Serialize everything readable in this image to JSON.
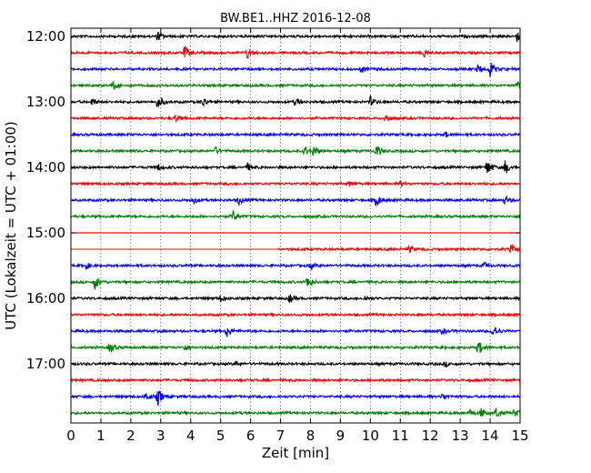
{
  "chart_data": {
    "type": "line",
    "title": "BW.BE1..HHZ 2016-12-08",
    "xlabel": "Zeit  [min]",
    "ylabel": "UTC (Lokalzeit = UTC + 01:00)",
    "xlim": [
      0,
      15
    ],
    "x_ticks": [
      "0",
      "1",
      "2",
      "3",
      "4",
      "5",
      "6",
      "7",
      "8",
      "9",
      "10",
      "11",
      "12",
      "13",
      "14",
      "15"
    ],
    "y_ticks": [
      "12:00",
      "13:00",
      "14:00",
      "15:00",
      "16:00",
      "17:00"
    ],
    "grid": "dotted vertical lines at each minute",
    "colors": [
      "#000000",
      "#ff0000",
      "#0000ff",
      "#008000"
    ],
    "rows_per_hour": 4,
    "minutes_per_row": 15,
    "traces": [
      {
        "row": 0,
        "start_time": "12:00",
        "color": "#000000",
        "events": [
          [
            2.9,
            0.55
          ],
          [
            14.9,
            0.6
          ]
        ]
      },
      {
        "row": 1,
        "start_time": "12:15",
        "color": "#ff0000",
        "events": [
          [
            3.8,
            0.85
          ],
          [
            5.9,
            0.75
          ],
          [
            11.8,
            0.5
          ]
        ]
      },
      {
        "row": 2,
        "start_time": "12:30",
        "color": "#0000ff",
        "events": [
          [
            9.7,
            0.4
          ],
          [
            13.6,
            0.55
          ],
          [
            14.0,
            1.0
          ]
        ]
      },
      {
        "row": 3,
        "start_time": "12:45",
        "color": "#008000",
        "events": [
          [
            1.4,
            0.55
          ],
          [
            14.9,
            0.5
          ]
        ]
      },
      {
        "row": 4,
        "start_time": "13:00",
        "color": "#000000",
        "events": [
          [
            0.7,
            0.45
          ],
          [
            2.9,
            0.9
          ],
          [
            4.4,
            0.6
          ],
          [
            7.5,
            0.45
          ],
          [
            10.0,
            0.6
          ]
        ]
      },
      {
        "row": 5,
        "start_time": "13:15",
        "color": "#ff0000",
        "events": [
          [
            3.5,
            0.4
          ],
          [
            10.5,
            0.6
          ]
        ]
      },
      {
        "row": 6,
        "start_time": "13:30",
        "color": "#0000ff",
        "events": [
          [
            12.5,
            0.3
          ]
        ]
      },
      {
        "row": 7,
        "start_time": "13:45",
        "color": "#008000",
        "events": [
          [
            4.8,
            0.55
          ],
          [
            7.8,
            0.6
          ],
          [
            8.1,
            0.7
          ],
          [
            10.2,
            0.8
          ]
        ]
      },
      {
        "row": 8,
        "start_time": "14:00",
        "color": "#000000",
        "events": [
          [
            2.9,
            0.4
          ],
          [
            5.9,
            0.45
          ],
          [
            13.9,
            1.0
          ],
          [
            14.5,
            0.85
          ]
        ]
      },
      {
        "row": 9,
        "start_time": "14:15",
        "color": "#ff0000",
        "events": [
          [
            9.3,
            0.3
          ],
          [
            11.0,
            0.3
          ]
        ]
      },
      {
        "row": 10,
        "start_time": "14:30",
        "color": "#0000ff",
        "events": [
          [
            4.1,
            0.4
          ],
          [
            5.6,
            0.5
          ],
          [
            10.2,
            0.8
          ],
          [
            14.5,
            0.5
          ]
        ]
      },
      {
        "row": 11,
        "start_time": "14:45",
        "color": "#008000",
        "events": [
          [
            5.4,
            0.75
          ]
        ]
      },
      {
        "row": 12,
        "start_time": "15:00",
        "color": "#ff0000",
        "events": [],
        "data_start": 0,
        "data_end": 0
      },
      {
        "row": 13,
        "start_time": "15:15",
        "color": "#ff0000",
        "events": [
          [
            11.3,
            0.35
          ],
          [
            14.7,
            0.55
          ]
        ],
        "data_start": 6.9
      },
      {
        "row": 14,
        "start_time": "15:30",
        "color": "#0000ff",
        "events": [
          [
            0.5,
            0.4
          ],
          [
            8.0,
            0.4
          ],
          [
            13.8,
            0.4
          ]
        ]
      },
      {
        "row": 15,
        "start_time": "15:45",
        "color": "#008000",
        "events": [
          [
            0.8,
            0.9
          ],
          [
            7.9,
            0.9
          ]
        ]
      },
      {
        "row": 16,
        "start_time": "16:00",
        "color": "#000000",
        "events": [
          [
            5.0,
            0.4
          ],
          [
            7.3,
            0.55
          ],
          [
            9.8,
            0.35
          ]
        ]
      },
      {
        "row": 17,
        "start_time": "16:15",
        "color": "#ff0000",
        "events": []
      },
      {
        "row": 18,
        "start_time": "16:30",
        "color": "#0000ff",
        "events": [
          [
            5.2,
            0.85
          ],
          [
            12.4,
            0.35
          ],
          [
            14.1,
            0.9
          ]
        ]
      },
      {
        "row": 19,
        "start_time": "16:45",
        "color": "#008000",
        "events": [
          [
            1.3,
            0.7
          ],
          [
            3.8,
            0.4
          ],
          [
            13.6,
            1.0
          ]
        ]
      },
      {
        "row": 20,
        "start_time": "17:00",
        "color": "#000000",
        "events": [
          [
            5.5,
            0.3
          ],
          [
            12.5,
            0.3
          ]
        ]
      },
      {
        "row": 21,
        "start_time": "17:15",
        "color": "#ff0000",
        "events": []
      },
      {
        "row": 22,
        "start_time": "17:30",
        "color": "#0000ff",
        "events": [
          [
            2.5,
            0.6
          ],
          [
            2.9,
            1.0
          ],
          [
            12.4,
            0.4
          ]
        ]
      },
      {
        "row": 23,
        "start_time": "17:45",
        "color": "#008000",
        "events": [
          [
            13.3,
            0.55
          ],
          [
            13.7,
            0.6
          ],
          [
            14.2,
            0.55
          ],
          [
            14.8,
            0.45
          ]
        ]
      }
    ]
  }
}
